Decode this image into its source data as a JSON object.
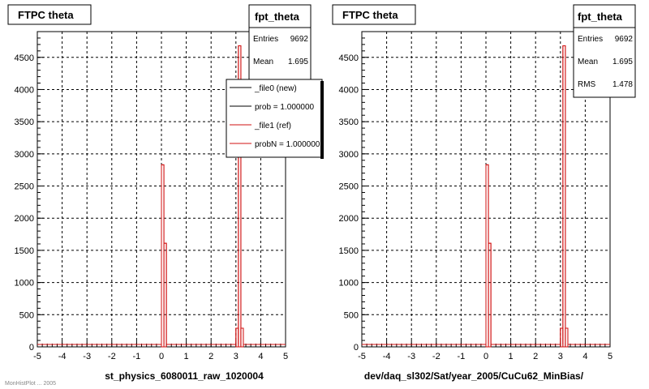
{
  "colors": {
    "reference": "#d01010",
    "new": "#000000",
    "frame": "#000000",
    "grid": "#000000"
  },
  "left_panel": {
    "title": "FTPC theta",
    "xlabel": "st_physics_6080011_raw_1020004",
    "footer": "MonHistPlot ... 2005",
    "stats": {
      "name": "fpt_theta",
      "entries_label": "Entries",
      "entries": "9692",
      "mean_label": "Mean",
      "mean": "1.695"
    },
    "legend": [
      {
        "label": "_file0 (new)",
        "color": "#000000"
      },
      {
        "label": "prob = 1.000000",
        "color": "#000000"
      },
      {
        "label": "_file1 (ref)",
        "color": "#d01010"
      },
      {
        "label": "probN = 1.000000",
        "color": "#d01010"
      }
    ]
  },
  "right_panel": {
    "title": "FTPC theta",
    "xlabel": "dev/daq_sl302/Sat/year_2005/CuCu62_MinBias/",
    "stats": {
      "name": "fpt_theta",
      "entries_label": "Entries",
      "entries": "9692",
      "mean_label": "Mean",
      "mean": "1.695",
      "rms_label": "RMS",
      "rms": "1.478"
    }
  },
  "chart_data": [
    {
      "type": "bar",
      "histogram": true,
      "title": "FTPC theta",
      "xlabel": "st_physics_6080011_raw_1020004",
      "ylabel": "",
      "xlim": [
        -5,
        5
      ],
      "ylim": [
        0,
        4900
      ],
      "xticks": [
        -5,
        -4,
        -3,
        -2,
        -1,
        0,
        1,
        2,
        3,
        4,
        5
      ],
      "yticks": [
        0,
        500,
        1000,
        1500,
        2000,
        2500,
        3000,
        3500,
        4000,
        4500
      ],
      "grid": true,
      "legend_position": "top-right",
      "bin_width": 0.1,
      "series": [
        {
          "name": "_file1 (ref)",
          "bins": [
            [
              0.0,
              2830
            ],
            [
              0.1,
              1610
            ],
            [
              2.9,
              0
            ],
            [
              3.0,
              290
            ],
            [
              3.1,
              4680
            ],
            [
              3.2,
              290
            ]
          ]
        }
      ]
    },
    {
      "type": "bar",
      "histogram": true,
      "title": "FTPC theta",
      "xlabel": "dev/daq_sl302/Sat/year_2005/CuCu62_MinBias/",
      "ylabel": "",
      "xlim": [
        -5,
        5
      ],
      "ylim": [
        0,
        4900
      ],
      "xticks": [
        -5,
        -4,
        -3,
        -2,
        -1,
        0,
        1,
        2,
        3,
        4,
        5
      ],
      "yticks": [
        0,
        500,
        1000,
        1500,
        2000,
        2500,
        3000,
        3500,
        4000,
        4500
      ],
      "grid": true,
      "bin_width": 0.1,
      "series": [
        {
          "name": "",
          "bins": [
            [
              0.0,
              2830
            ],
            [
              0.1,
              1610
            ],
            [
              3.0,
              290
            ],
            [
              3.1,
              4680
            ],
            [
              3.2,
              290
            ]
          ]
        }
      ]
    }
  ]
}
